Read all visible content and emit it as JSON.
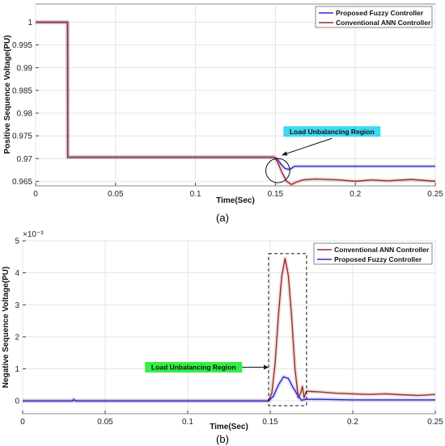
{
  "chart_data": [
    {
      "id": "a",
      "type": "line",
      "caption": "(a)",
      "xlabel": "Time(Sec)",
      "ylabel": "Positive Sequence Voltage(PU)",
      "xlim": [
        0,
        0.25
      ],
      "ylim": [
        0.964,
        1.004
      ],
      "xticks": [
        "0",
        "0.05",
        "0.1",
        "0.15",
        "0.2",
        "0.25"
      ],
      "yticks": [
        "1",
        "0.995",
        "0.99",
        "0.985",
        "0.98",
        "0.975",
        "0.97",
        "0.965"
      ],
      "grid": true,
      "legend_placement": "top-right",
      "series": [
        {
          "name": "Proposed Fuzzy Controller",
          "color": "#2a2ad0",
          "points": [
            [
              0,
              1.0
            ],
            [
              0.02,
              1.0
            ],
            [
              0.0201,
              0.9703
            ],
            [
              0.149,
              0.9703
            ],
            [
              0.151,
              0.97
            ],
            [
              0.153,
              0.969
            ],
            [
              0.156,
              0.9678
            ],
            [
              0.159,
              0.9676
            ],
            [
              0.162,
              0.9683
            ],
            [
              0.168,
              0.9683
            ],
            [
              0.18,
              0.9683
            ],
            [
              0.2,
              0.9683
            ],
            [
              0.22,
              0.9683
            ],
            [
              0.25,
              0.9683
            ]
          ]
        },
        {
          "name": "Conventional ANN Controller",
          "color": "#9b2a2a",
          "points": [
            [
              0,
              1.0
            ],
            [
              0.02,
              1.0
            ],
            [
              0.0201,
              0.9703
            ],
            [
              0.149,
              0.9703
            ],
            [
              0.151,
              0.9695
            ],
            [
              0.154,
              0.967
            ],
            [
              0.157,
              0.965
            ],
            [
              0.16,
              0.9643
            ],
            [
              0.163,
              0.9648
            ],
            [
              0.167,
              0.9653
            ],
            [
              0.175,
              0.9655
            ],
            [
              0.19,
              0.9653
            ],
            [
              0.2,
              0.965
            ],
            [
              0.21,
              0.9653
            ],
            [
              0.22,
              0.9651
            ],
            [
              0.235,
              0.9654
            ],
            [
              0.25,
              0.965
            ]
          ]
        }
      ],
      "annotation": {
        "text": "Load Unbalancing Region",
        "color": "#3fd8f0",
        "target": [
          0.152,
          0.9672
        ],
        "ellipse_x": [
          0.144,
          0.159
        ],
        "ellipse_y": [
          0.9647,
          0.97
        ],
        "box_anchor": [
          0.155,
          0.9748
        ]
      }
    },
    {
      "id": "b",
      "type": "line",
      "caption": "(b)",
      "xlabel": "Time(Sec)",
      "ylabel": "Negative Sequence Voltage(PU)",
      "exponent": "×10⁻³",
      "xlim": [
        0,
        0.25
      ],
      "ylim": [
        -0.4,
        5.0
      ],
      "xticks": [
        "0",
        "0.05",
        "0.1",
        "0.15",
        "0.2",
        "0.25"
      ],
      "yticks": [
        "5",
        "4",
        "3",
        "2",
        "1",
        "0"
      ],
      "grid": true,
      "legend_placement": "top-right",
      "series": [
        {
          "name": "Conventional ANN Controller",
          "color": "#9b2a2a",
          "points": [
            [
              0,
              0.0
            ],
            [
              0.03,
              0.0
            ],
            [
              0.031,
              0.04
            ],
            [
              0.032,
              0.0
            ],
            [
              0.149,
              0.0
            ],
            [
              0.151,
              0.25
            ],
            [
              0.153,
              1.2
            ],
            [
              0.155,
              2.7
            ],
            [
              0.157,
              3.9
            ],
            [
              0.159,
              4.45
            ],
            [
              0.161,
              3.9
            ],
            [
              0.163,
              2.6
            ],
            [
              0.165,
              1.0
            ],
            [
              0.167,
              0.1
            ],
            [
              0.1685,
              0.25
            ],
            [
              0.1695,
              0.45
            ],
            [
              0.1705,
              0.1
            ],
            [
              0.1715,
              0.25
            ],
            [
              0.172,
              0.3
            ],
            [
              0.18,
              0.28
            ],
            [
              0.19,
              0.24
            ],
            [
              0.2,
              0.22
            ],
            [
              0.21,
              0.2
            ],
            [
              0.22,
              0.22
            ],
            [
              0.23,
              0.19
            ],
            [
              0.24,
              0.17
            ],
            [
              0.25,
              0.2
            ]
          ]
        },
        {
          "name": "Proposed Fuzzy Controller",
          "color": "#2a2ad0",
          "points": [
            [
              0,
              0.0
            ],
            [
              0.03,
              0.0
            ],
            [
              0.031,
              0.04
            ],
            [
              0.032,
              0.0
            ],
            [
              0.149,
              0.0
            ],
            [
              0.152,
              0.15
            ],
            [
              0.155,
              0.5
            ],
            [
              0.158,
              0.75
            ],
            [
              0.161,
              0.7
            ],
            [
              0.164,
              0.4
            ],
            [
              0.167,
              0.15
            ],
            [
              0.169,
              0.02
            ],
            [
              0.172,
              0.05
            ],
            [
              0.18,
              0.05
            ],
            [
              0.2,
              0.03
            ],
            [
              0.22,
              0.03
            ],
            [
              0.25,
              0.03
            ]
          ]
        }
      ],
      "annotation": {
        "text": "Load Unbalancing Region",
        "color": "#33ee44",
        "rect_x": [
          0.149,
          0.172
        ],
        "rect_y": [
          -0.15,
          4.6
        ],
        "target": [
          0.149,
          1.05
        ],
        "box_anchor": [
          0.133,
          1.05
        ]
      }
    }
  ]
}
